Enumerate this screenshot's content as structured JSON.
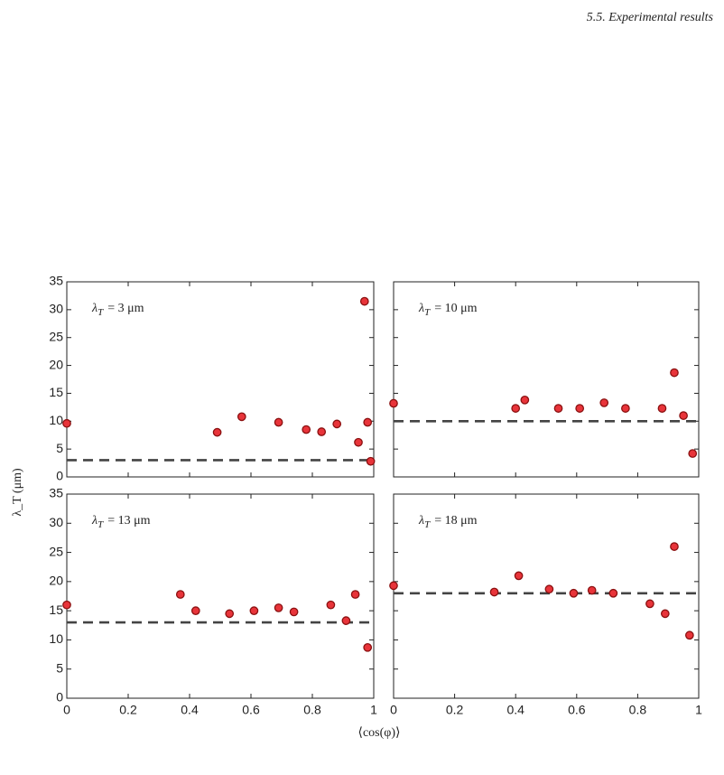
{
  "header": "5.5. Experimental results",
  "shared_axes": {
    "xlabel": "⟨cos(φ)⟩",
    "ylabel": "λ_T (μm)"
  },
  "chart_data": [
    {
      "type": "scatter",
      "annotation": {
        "symbol": "λ",
        "subscript": "T",
        "text": "= 3 μm"
      },
      "reference_line": 3,
      "x": [
        0,
        0.49,
        0.57,
        0.69,
        0.78,
        0.83,
        0.88,
        0.95,
        0.97,
        0.98,
        0.99
      ],
      "values": [
        9.6,
        8.0,
        10.8,
        9.8,
        8.5,
        8.1,
        9.5,
        6.2,
        31.5,
        9.8,
        2.8
      ],
      "color": "#e8343a",
      "xlim": [
        0,
        1
      ],
      "ylim": [
        0,
        35
      ],
      "xticks": [
        0,
        0.2,
        0.4,
        0.6,
        0.8,
        1
      ],
      "yticks": [
        0,
        5,
        10,
        15,
        20,
        25,
        30,
        35
      ]
    },
    {
      "type": "scatter",
      "annotation": {
        "symbol": "λ",
        "subscript": "T",
        "text": "= 10 μm"
      },
      "reference_line": 10,
      "x": [
        0,
        0.4,
        0.43,
        0.54,
        0.61,
        0.69,
        0.76,
        0.88,
        0.92,
        0.95,
        0.98
      ],
      "values": [
        13.2,
        12.3,
        13.8,
        12.3,
        12.3,
        13.3,
        12.3,
        12.3,
        18.7,
        11.0,
        4.2
      ],
      "color": "#e8343a",
      "xlim": [
        0,
        1
      ],
      "ylim": [
        0,
        35
      ],
      "xticks": [
        0,
        0.2,
        0.4,
        0.6,
        0.8,
        1
      ],
      "yticks": [
        0,
        5,
        10,
        15,
        20,
        25,
        30,
        35
      ]
    },
    {
      "type": "scatter",
      "annotation": {
        "symbol": "λ",
        "subscript": "T",
        "text": "= 13 μm"
      },
      "reference_line": 13,
      "x": [
        0,
        0.37,
        0.42,
        0.53,
        0.61,
        0.69,
        0.74,
        0.86,
        0.91,
        0.94,
        0.98
      ],
      "values": [
        16.0,
        17.8,
        15.0,
        14.5,
        15.0,
        15.5,
        14.8,
        16.0,
        13.3,
        17.8,
        8.7
      ],
      "color": "#e8343a",
      "xlim": [
        0,
        1
      ],
      "ylim": [
        0,
        35
      ],
      "xticks": [
        0,
        0.2,
        0.4,
        0.6,
        0.8,
        1
      ],
      "yticks": [
        0,
        5,
        10,
        15,
        20,
        25,
        30,
        35
      ]
    },
    {
      "type": "scatter",
      "annotation": {
        "symbol": "λ",
        "subscript": "T",
        "text": "= 18 μm"
      },
      "reference_line": 18,
      "x": [
        0,
        0.33,
        0.41,
        0.51,
        0.59,
        0.65,
        0.72,
        0.84,
        0.89,
        0.92,
        0.97
      ],
      "values": [
        19.3,
        18.2,
        21.0,
        18.7,
        18.0,
        18.5,
        18.0,
        16.2,
        14.5,
        26.0,
        10.8
      ],
      "color": "#e8343a",
      "xlim": [
        0,
        1
      ],
      "ylim": [
        0,
        35
      ],
      "xticks": [
        0,
        0.2,
        0.4,
        0.6,
        0.8,
        1
      ],
      "yticks": [
        0,
        5,
        10,
        15,
        20,
        25,
        30,
        35
      ]
    }
  ]
}
